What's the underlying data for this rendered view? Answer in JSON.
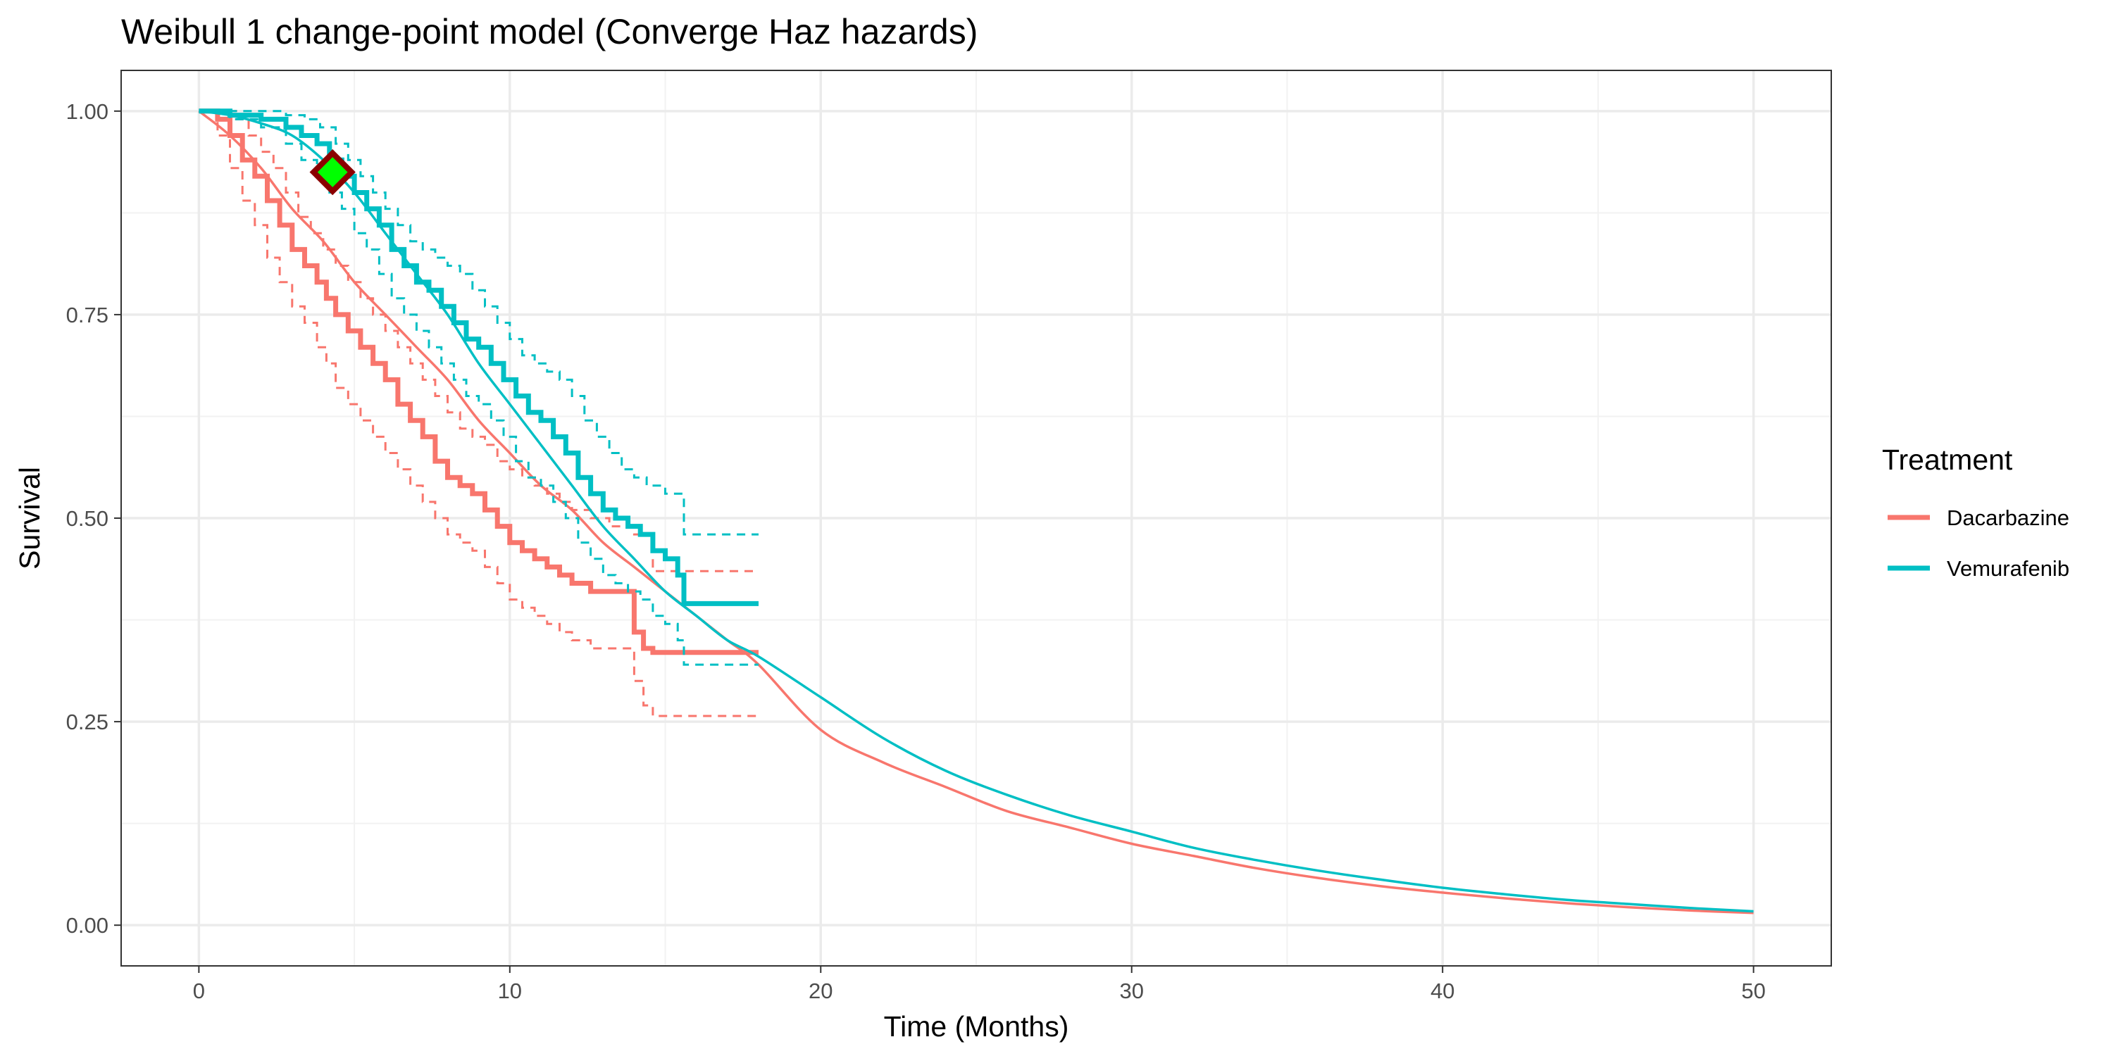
{
  "chart_data": {
    "type": "line",
    "title": "Weibull 1 change-point model (Converge Haz hazards)",
    "xlabel": "Time (Months)",
    "ylabel": "Survival",
    "xlim": [
      -2.5,
      52.5
    ],
    "ylim": [
      -0.05,
      1.05
    ],
    "x_ticks": [
      0,
      10,
      20,
      30,
      40,
      50
    ],
    "x_tick_labels": [
      "0",
      "10",
      "20",
      "30",
      "40",
      "50"
    ],
    "y_ticks": [
      0,
      0.25,
      0.5,
      0.75,
      1.0
    ],
    "y_tick_labels": [
      "0.00",
      "0.25",
      "0.50",
      "0.75",
      "1.00"
    ],
    "grid": true,
    "legend": {
      "title": "Treatment",
      "placement": "right",
      "entries": [
        "Dacarbazine",
        "Vemurafenib"
      ]
    },
    "series": [
      {
        "name": "Dacarbazine",
        "color": "#F8766D",
        "fitted_curve": {
          "x": [
            0,
            1,
            2,
            3,
            4,
            5,
            6,
            7,
            8,
            9,
            10,
            11,
            12,
            13,
            14,
            15,
            16,
            17,
            18,
            20,
            22,
            24,
            26,
            28,
            30,
            32,
            34,
            36,
            38,
            40,
            42,
            44,
            46,
            48,
            50
          ],
          "y": [
            1.0,
            0.97,
            0.93,
            0.88,
            0.84,
            0.79,
            0.75,
            0.71,
            0.67,
            0.62,
            0.58,
            0.54,
            0.51,
            0.47,
            0.44,
            0.41,
            0.38,
            0.35,
            0.32,
            0.24,
            0.2,
            0.17,
            0.14,
            0.12,
            0.1,
            0.085,
            0.07,
            0.058,
            0.048,
            0.04,
            0.033,
            0.027,
            0.022,
            0.018,
            0.015
          ]
        },
        "km": {
          "x": [
            0,
            0.6,
            1.0,
            1.4,
            1.8,
            2.2,
            2.6,
            3.0,
            3.4,
            3.8,
            4.1,
            4.4,
            4.8,
            5.2,
            5.6,
            6.0,
            6.4,
            6.8,
            7.2,
            7.6,
            8.0,
            8.4,
            8.8,
            9.2,
            9.6,
            10.0,
            10.4,
            10.8,
            11.2,
            11.6,
            12.0,
            12.6,
            13.2,
            14.0,
            14.3,
            14.6,
            18.0
          ],
          "y": [
            1.0,
            0.99,
            0.97,
            0.94,
            0.92,
            0.89,
            0.86,
            0.83,
            0.81,
            0.79,
            0.77,
            0.75,
            0.73,
            0.71,
            0.69,
            0.67,
            0.64,
            0.62,
            0.6,
            0.57,
            0.55,
            0.54,
            0.53,
            0.51,
            0.49,
            0.47,
            0.46,
            0.45,
            0.44,
            0.43,
            0.42,
            0.41,
            0.41,
            0.36,
            0.34,
            0.335,
            0.335
          ]
        },
        "km_upper": {
          "x": [
            0,
            0.8,
            1.2,
            1.6,
            2.0,
            2.4,
            2.8,
            3.2,
            3.6,
            4.0,
            4.4,
            4.8,
            5.2,
            5.6,
            6.0,
            6.4,
            6.8,
            7.2,
            7.6,
            8.0,
            8.4,
            8.8,
            9.2,
            9.6,
            10.0,
            10.4,
            10.8,
            11.2,
            11.6,
            12.0,
            12.6,
            13.2,
            14.0,
            14.6,
            18.0
          ],
          "y": [
            1.0,
            1.0,
            0.99,
            0.97,
            0.95,
            0.93,
            0.9,
            0.87,
            0.85,
            0.83,
            0.81,
            0.79,
            0.77,
            0.75,
            0.73,
            0.71,
            0.69,
            0.67,
            0.65,
            0.63,
            0.61,
            0.6,
            0.59,
            0.57,
            0.56,
            0.55,
            0.54,
            0.53,
            0.52,
            0.51,
            0.5,
            0.49,
            0.48,
            0.435,
            0.435
          ]
        },
        "km_lower": {
          "x": [
            0,
            0.6,
            1.0,
            1.4,
            1.8,
            2.2,
            2.6,
            3.0,
            3.4,
            3.8,
            4.1,
            4.4,
            4.8,
            5.2,
            5.6,
            6.0,
            6.4,
            6.8,
            7.2,
            7.6,
            8.0,
            8.4,
            8.8,
            9.2,
            9.6,
            10.0,
            10.4,
            10.8,
            11.2,
            11.6,
            12.0,
            12.6,
            13.2,
            14.0,
            14.3,
            14.6,
            18.0
          ],
          "y": [
            1.0,
            0.97,
            0.93,
            0.89,
            0.86,
            0.82,
            0.79,
            0.76,
            0.74,
            0.71,
            0.69,
            0.66,
            0.64,
            0.62,
            0.6,
            0.58,
            0.56,
            0.54,
            0.52,
            0.5,
            0.48,
            0.47,
            0.46,
            0.44,
            0.42,
            0.4,
            0.39,
            0.38,
            0.37,
            0.36,
            0.35,
            0.34,
            0.34,
            0.3,
            0.27,
            0.257,
            0.257
          ]
        }
      },
      {
        "name": "Vemurafenib",
        "color": "#00BFC4",
        "fitted_curve": {
          "x": [
            0,
            1,
            2,
            3,
            4,
            5,
            6,
            7,
            8,
            9,
            10,
            11,
            12,
            13,
            14,
            15,
            16,
            17,
            18,
            20,
            22,
            24,
            26,
            28,
            30,
            32,
            34,
            36,
            38,
            40,
            42,
            44,
            46,
            48,
            50
          ],
          "y": [
            1.0,
            0.995,
            0.985,
            0.97,
            0.94,
            0.9,
            0.85,
            0.8,
            0.75,
            0.69,
            0.64,
            0.59,
            0.54,
            0.49,
            0.45,
            0.41,
            0.38,
            0.35,
            0.33,
            0.28,
            0.23,
            0.19,
            0.16,
            0.135,
            0.115,
            0.095,
            0.08,
            0.067,
            0.056,
            0.046,
            0.038,
            0.031,
            0.026,
            0.021,
            0.017
          ]
        },
        "km": {
          "x": [
            0,
            1.0,
            2.0,
            2.8,
            3.3,
            3.8,
            4.2,
            4.6,
            5.0,
            5.4,
            5.8,
            6.2,
            6.6,
            7.0,
            7.4,
            7.8,
            8.2,
            8.6,
            9.0,
            9.4,
            9.8,
            10.2,
            10.6,
            11.0,
            11.4,
            11.8,
            12.2,
            12.6,
            13.0,
            13.4,
            13.8,
            14.2,
            14.6,
            15.0,
            15.4,
            15.6,
            18.0
          ],
          "y": [
            1.0,
            0.995,
            0.99,
            0.98,
            0.97,
            0.96,
            0.94,
            0.92,
            0.9,
            0.88,
            0.86,
            0.83,
            0.81,
            0.79,
            0.78,
            0.76,
            0.74,
            0.72,
            0.71,
            0.69,
            0.67,
            0.65,
            0.63,
            0.62,
            0.6,
            0.58,
            0.55,
            0.53,
            0.51,
            0.5,
            0.49,
            0.48,
            0.46,
            0.45,
            0.43,
            0.395,
            0.395
          ]
        },
        "km_upper": {
          "x": [
            0,
            1.0,
            2.0,
            2.8,
            3.4,
            3.9,
            4.4,
            4.8,
            5.2,
            5.6,
            6.0,
            6.4,
            6.8,
            7.2,
            7.6,
            8.0,
            8.4,
            8.8,
            9.2,
            9.6,
            10.0,
            10.4,
            10.8,
            11.2,
            11.6,
            12.0,
            12.4,
            12.8,
            13.2,
            13.6,
            14.0,
            14.4,
            15.0,
            15.6,
            18.0
          ],
          "y": [
            1.0,
            1.0,
            1.0,
            0.995,
            0.99,
            0.98,
            0.96,
            0.94,
            0.92,
            0.9,
            0.88,
            0.86,
            0.84,
            0.83,
            0.82,
            0.81,
            0.8,
            0.78,
            0.76,
            0.74,
            0.72,
            0.7,
            0.69,
            0.68,
            0.67,
            0.65,
            0.62,
            0.6,
            0.58,
            0.56,
            0.55,
            0.54,
            0.53,
            0.48,
            0.48
          ]
        },
        "km_lower": {
          "x": [
            0,
            1.0,
            2.0,
            2.8,
            3.3,
            3.8,
            4.2,
            4.6,
            5.0,
            5.4,
            5.8,
            6.2,
            6.6,
            7.0,
            7.4,
            7.8,
            8.2,
            8.6,
            9.0,
            9.4,
            9.8,
            10.2,
            10.6,
            11.0,
            11.4,
            11.8,
            12.2,
            12.6,
            13.0,
            13.4,
            13.8,
            14.2,
            14.6,
            15.0,
            15.4,
            15.6,
            18.0
          ],
          "y": [
            1.0,
            0.99,
            0.98,
            0.96,
            0.94,
            0.92,
            0.9,
            0.88,
            0.85,
            0.83,
            0.8,
            0.77,
            0.75,
            0.73,
            0.71,
            0.69,
            0.67,
            0.65,
            0.64,
            0.62,
            0.6,
            0.57,
            0.55,
            0.54,
            0.52,
            0.5,
            0.47,
            0.45,
            0.43,
            0.42,
            0.41,
            0.4,
            0.38,
            0.37,
            0.35,
            0.32,
            0.32
          ]
        }
      }
    ],
    "marker": {
      "shape": "diamond",
      "x": 4.3,
      "y": 0.925,
      "fill": "#00FF00",
      "stroke": "#8B0000"
    }
  }
}
